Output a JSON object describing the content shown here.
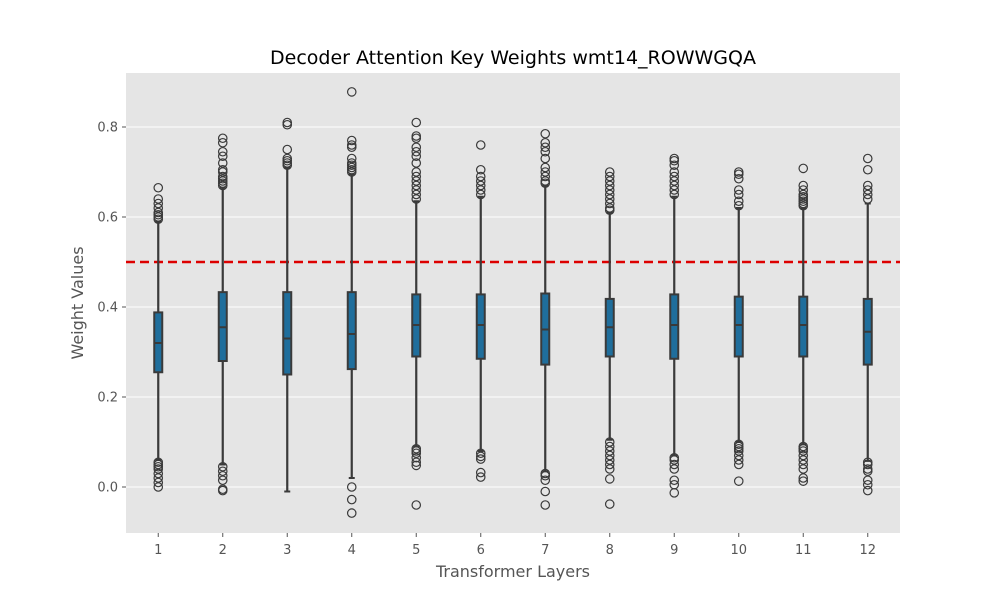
{
  "chart_data": {
    "type": "box",
    "title": "Decoder Attention Key Weights wmt14_ROWWGQA",
    "xlabel": "Transformer Layers",
    "ylabel": "Weight Values",
    "categories": [
      "1",
      "2",
      "3",
      "4",
      "5",
      "6",
      "7",
      "8",
      "9",
      "10",
      "11",
      "12"
    ],
    "ylim": [
      -0.1,
      0.92
    ],
    "yticks": [
      0.0,
      0.2,
      0.4,
      0.6,
      0.8
    ],
    "ytick_labels": [
      "0.0",
      "0.2",
      "0.4",
      "0.6",
      "0.8"
    ],
    "grid": true,
    "reference_line": {
      "y": 0.5,
      "color": "#dd0000",
      "style": "dashed"
    },
    "box_color": "#1f6e9c",
    "background": "#e5e5e5",
    "boxes": [
      {
        "layer": "1",
        "q1": 0.255,
        "median": 0.32,
        "q3": 0.388,
        "whisker_low": 0.06,
        "whisker_high": 0.59,
        "outliers": [
          0.665,
          0.64,
          0.63,
          0.62,
          0.61,
          0.605,
          0.6,
          0.595,
          0.055,
          0.05,
          0.045,
          0.04,
          0.03,
          0.02,
          0.01,
          0.0
        ]
      },
      {
        "layer": "2",
        "q1": 0.28,
        "median": 0.355,
        "q3": 0.433,
        "whisker_low": 0.05,
        "whisker_high": 0.665,
        "outliers": [
          0.775,
          0.765,
          0.745,
          0.735,
          0.72,
          0.705,
          0.7,
          0.69,
          0.685,
          0.68,
          0.675,
          0.67,
          0.045,
          0.035,
          0.025,
          0.015,
          -0.005,
          -0.008
        ]
      },
      {
        "layer": "3",
        "q1": 0.25,
        "median": 0.33,
        "q3": 0.433,
        "whisker_low": -0.01,
        "whisker_high": 0.71,
        "outliers": [
          0.81,
          0.805,
          0.75,
          0.73,
          0.725,
          0.72,
          0.715
        ]
      },
      {
        "layer": "4",
        "q1": 0.262,
        "median": 0.34,
        "q3": 0.433,
        "whisker_low": 0.02,
        "whisker_high": 0.695,
        "outliers": [
          0.878,
          0.77,
          0.76,
          0.755,
          0.73,
          0.72,
          0.715,
          0.71,
          0.705,
          0.7,
          0.0,
          -0.028,
          -0.058
        ]
      },
      {
        "layer": "5",
        "q1": 0.29,
        "median": 0.36,
        "q3": 0.428,
        "whisker_low": 0.09,
        "whisker_high": 0.635,
        "outliers": [
          0.81,
          0.78,
          0.775,
          0.755,
          0.745,
          0.735,
          0.72,
          0.7,
          0.69,
          0.68,
          0.67,
          0.66,
          0.65,
          0.64,
          0.085,
          0.08,
          0.075,
          0.065,
          0.055,
          0.048,
          -0.04
        ]
      },
      {
        "layer": "6",
        "q1": 0.285,
        "median": 0.36,
        "q3": 0.428,
        "whisker_low": 0.08,
        "whisker_high": 0.645,
        "outliers": [
          0.76,
          0.705,
          0.69,
          0.68,
          0.67,
          0.66,
          0.65,
          0.075,
          0.068,
          0.062,
          0.032,
          0.022
        ]
      },
      {
        "layer": "7",
        "q1": 0.272,
        "median": 0.35,
        "q3": 0.43,
        "whisker_low": 0.035,
        "whisker_high": 0.67,
        "outliers": [
          0.785,
          0.765,
          0.755,
          0.745,
          0.73,
          0.71,
          0.7,
          0.69,
          0.68,
          0.675,
          0.03,
          0.025,
          0.015,
          -0.01,
          -0.04
        ]
      },
      {
        "layer": "8",
        "q1": 0.29,
        "median": 0.355,
        "q3": 0.418,
        "whisker_low": 0.105,
        "whisker_high": 0.61,
        "outliers": [
          0.7,
          0.69,
          0.68,
          0.67,
          0.66,
          0.65,
          0.64,
          0.63,
          0.62,
          0.615,
          0.1,
          0.09,
          0.08,
          0.07,
          0.06,
          0.05,
          0.04,
          0.018,
          -0.038
        ]
      },
      {
        "layer": "9",
        "q1": 0.285,
        "median": 0.36,
        "q3": 0.428,
        "whisker_low": 0.07,
        "whisker_high": 0.645,
        "outliers": [
          0.73,
          0.725,
          0.715,
          0.7,
          0.69,
          0.68,
          0.67,
          0.66,
          0.65,
          0.065,
          0.06,
          0.05,
          0.04,
          0.015,
          0.005,
          -0.013
        ]
      },
      {
        "layer": "10",
        "q1": 0.29,
        "median": 0.36,
        "q3": 0.423,
        "whisker_low": 0.1,
        "whisker_high": 0.62,
        "outliers": [
          0.7,
          0.695,
          0.685,
          0.66,
          0.65,
          0.635,
          0.625,
          0.095,
          0.09,
          0.085,
          0.08,
          0.07,
          0.06,
          0.05,
          0.013
        ]
      },
      {
        "layer": "11",
        "q1": 0.29,
        "median": 0.36,
        "q3": 0.423,
        "whisker_low": 0.095,
        "whisker_high": 0.62,
        "outliers": [
          0.708,
          0.67,
          0.66,
          0.65,
          0.645,
          0.64,
          0.635,
          0.63,
          0.625,
          0.09,
          0.085,
          0.08,
          0.07,
          0.06,
          0.05,
          0.04,
          0.02,
          0.013
        ]
      },
      {
        "layer": "12",
        "q1": 0.272,
        "median": 0.345,
        "q3": 0.418,
        "whisker_low": 0.058,
        "whisker_high": 0.63,
        "outliers": [
          0.73,
          0.705,
          0.67,
          0.66,
          0.65,
          0.64,
          0.055,
          0.05,
          0.04,
          0.035,
          0.015,
          0.005,
          -0.008
        ]
      }
    ]
  }
}
